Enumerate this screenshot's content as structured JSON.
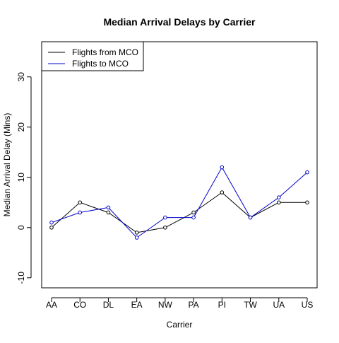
{
  "chart_data": {
    "type": "line",
    "title": "Median Arrival Delays by Carrier",
    "xlabel": "Carrier",
    "ylabel": "Median Arrival Delay (Mins)",
    "categories": [
      "AA",
      "CO",
      "DL",
      "EA",
      "NW",
      "PA",
      "PI",
      "TW",
      "UA",
      "US"
    ],
    "ylim": [
      -12,
      37
    ],
    "yticks": [
      -10,
      0,
      10,
      20,
      30
    ],
    "grid": false,
    "legend_position": "top-left",
    "series": [
      {
        "name": "Flights from MCO",
        "color": "#000000",
        "values": [
          0,
          5,
          3,
          -1,
          0,
          3,
          7,
          2,
          5,
          5
        ]
      },
      {
        "name": "Flights to MCO",
        "color": "#0000cc",
        "values": [
          1,
          3,
          4,
          -2,
          2,
          2,
          12,
          2,
          6,
          11
        ]
      }
    ]
  }
}
